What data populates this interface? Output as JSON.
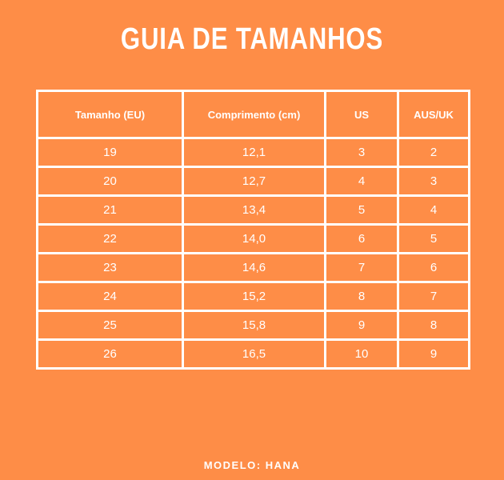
{
  "header": {
    "title": "GUIA DE TAMANHOS"
  },
  "table": {
    "columns": [
      "Tamanho (EU)",
      "Comprimento (cm)",
      "US",
      "AUS/UK"
    ],
    "rows": [
      [
        "19",
        "12,1",
        "3",
        "2"
      ],
      [
        "20",
        "12,7",
        "4",
        "3"
      ],
      [
        "21",
        "13,4",
        "5",
        "4"
      ],
      [
        "22",
        "14,0",
        "6",
        "5"
      ],
      [
        "23",
        "14,6",
        "7",
        "6"
      ],
      [
        "24",
        "15,2",
        "8",
        "7"
      ],
      [
        "25",
        "15,8",
        "9",
        "8"
      ],
      [
        "26",
        "16,5",
        "10",
        "9"
      ]
    ]
  },
  "footer": {
    "text": "MODELO: HANA"
  }
}
